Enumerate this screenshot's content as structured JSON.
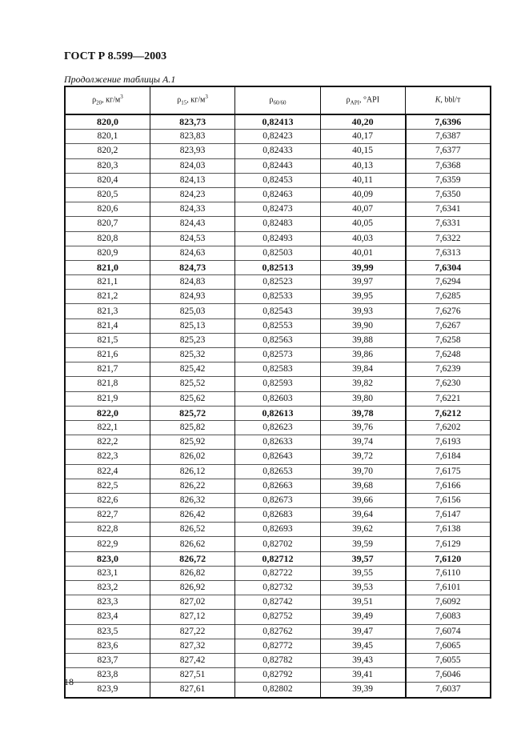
{
  "header": {
    "title": "ГОСТ Р 8.599—2003",
    "caption": "Продолжение таблицы А.1"
  },
  "table": {
    "columns": [
      {
        "sym": "ρ",
        "sub": "20",
        "unit": ", кг/м",
        "sup": "3"
      },
      {
        "sym": "ρ",
        "sub": "15",
        "unit": ", кг/м",
        "sup": "3"
      },
      {
        "sym": "ρ",
        "sub": "60/60",
        "unit": "",
        "sup": ""
      },
      {
        "sym": "ρ",
        "sub": "API",
        "unit": ", °API",
        "sup": ""
      },
      {
        "sym": "K",
        "sub": "",
        "unit": ", bbl/т",
        "sup": ""
      }
    ],
    "rows": [
      {
        "bold": true,
        "cells": [
          "820,0",
          "823,73",
          "0,82413",
          "40,20",
          "7,6396"
        ]
      },
      {
        "cells": [
          "820,1",
          "823,83",
          "0,82423",
          "40,17",
          "7,6387"
        ]
      },
      {
        "cells": [
          "820,2",
          "823,93",
          "0,82433",
          "40,15",
          "7,6377"
        ]
      },
      {
        "cells": [
          "820,3",
          "824,03",
          "0,82443",
          "40,13",
          "7,6368"
        ]
      },
      {
        "cells": [
          "820,4",
          "824,13",
          "0,82453",
          "40,11",
          "7,6359"
        ]
      },
      {
        "cells": [
          "820,5",
          "824,23",
          "0,82463",
          "40,09",
          "7,6350"
        ]
      },
      {
        "cells": [
          "820,6",
          "824,33",
          "0,82473",
          "40,07",
          "7,6341"
        ]
      },
      {
        "cells": [
          "820,7",
          "824,43",
          "0,82483",
          "40,05",
          "7,6331"
        ]
      },
      {
        "cells": [
          "820,8",
          "824,53",
          "0,82493",
          "40,03",
          "7,6322"
        ]
      },
      {
        "cells": [
          "820,9",
          "824,63",
          "0,82503",
          "40,01",
          "7,6313"
        ]
      },
      {
        "bold": true,
        "cells": [
          "821,0",
          "824,73",
          "0,82513",
          "39,99",
          "7,6304"
        ]
      },
      {
        "cells": [
          "821,1",
          "824,83",
          "0,82523",
          "39,97",
          "7,6294"
        ]
      },
      {
        "cells": [
          "821,2",
          "824,93",
          "0,82533",
          "39,95",
          "7,6285"
        ]
      },
      {
        "cells": [
          "821,3",
          "825,03",
          "0,82543",
          "39,93",
          "7,6276"
        ]
      },
      {
        "cells": [
          "821,4",
          "825,13",
          "0,82553",
          "39,90",
          "7,6267"
        ]
      },
      {
        "cells": [
          "821,5",
          "825,23",
          "0,82563",
          "39,88",
          "7,6258"
        ]
      },
      {
        "cells": [
          "821,6",
          "825,32",
          "0,82573",
          "39,86",
          "7,6248"
        ]
      },
      {
        "cells": [
          "821,7",
          "825,42",
          "0,82583",
          "39,84",
          "7,6239"
        ]
      },
      {
        "cells": [
          "821,8",
          "825,52",
          "0,82593",
          "39,82",
          "7,6230"
        ]
      },
      {
        "cells": [
          "821,9",
          "825,62",
          "0,82603",
          "39,80",
          "7,6221"
        ]
      },
      {
        "bold": true,
        "cells": [
          "822,0",
          "825,72",
          "0,82613",
          "39,78",
          "7,6212"
        ]
      },
      {
        "cells": [
          "822,1",
          "825,82",
          "0,82623",
          "39,76",
          "7,6202"
        ]
      },
      {
        "cells": [
          "822,2",
          "825,92",
          "0,82633",
          "39,74",
          "7,6193"
        ]
      },
      {
        "cells": [
          "822,3",
          "826,02",
          "0,82643",
          "39,72",
          "7,6184"
        ]
      },
      {
        "cells": [
          "822,4",
          "826,12",
          "0,82653",
          "39,70",
          "7,6175"
        ]
      },
      {
        "cells": [
          "822,5",
          "826,22",
          "0,82663",
          "39,68",
          "7,6166"
        ]
      },
      {
        "cells": [
          "822,6",
          "826,32",
          "0,82673",
          "39,66",
          "7,6156"
        ]
      },
      {
        "cells": [
          "822,7",
          "826,42",
          "0,82683",
          "39,64",
          "7,6147"
        ]
      },
      {
        "cells": [
          "822,8",
          "826,52",
          "0,82693",
          "39,62",
          "7,6138"
        ]
      },
      {
        "cells": [
          "822,9",
          "826,62",
          "0,82702",
          "39,59",
          "7,6129"
        ]
      },
      {
        "bold": true,
        "cells": [
          "823,0",
          "826,72",
          "0,82712",
          "39,57",
          "7,6120"
        ]
      },
      {
        "cells": [
          "823,1",
          "826,82",
          "0,82722",
          "39,55",
          "7,6110"
        ]
      },
      {
        "cells": [
          "823,2",
          "826,92",
          "0,82732",
          "39,53",
          "7,6101"
        ]
      },
      {
        "cells": [
          "823,3",
          "827,02",
          "0,82742",
          "39,51",
          "7,6092"
        ]
      },
      {
        "cells": [
          "823,4",
          "827,12",
          "0,82752",
          "39,49",
          "7,6083"
        ]
      },
      {
        "cells": [
          "823,5",
          "827,22",
          "0,82762",
          "39,47",
          "7,6074"
        ]
      },
      {
        "cells": [
          "823,6",
          "827,32",
          "0,82772",
          "39,45",
          "7,6065"
        ]
      },
      {
        "cells": [
          "823,7",
          "827,42",
          "0,82782",
          "39,43",
          "7,6055"
        ]
      },
      {
        "cells": [
          "823,8",
          "827,51",
          "0,82792",
          "39,41",
          "7,6046"
        ]
      },
      {
        "cells": [
          "823,9",
          "827,61",
          "0,82802",
          "39,39",
          "7,6037"
        ]
      }
    ]
  },
  "footer": {
    "page_number": "18"
  }
}
